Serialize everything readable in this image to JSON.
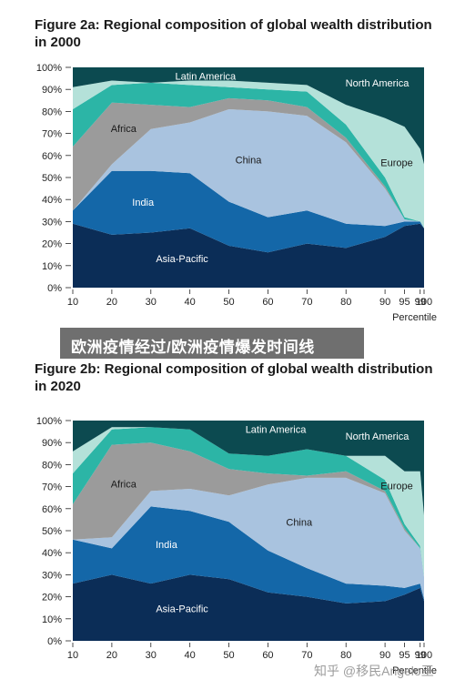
{
  "overlay_banner": "欧洲疫情经过/欧洲疫情爆发时间线",
  "watermark": "知乎 @移民Angelo王",
  "colors": {
    "Asia-Pacific": "#0b2d57",
    "India": "#1467a8",
    "China": "#a9c3df",
    "Africa": "#9b9b9b",
    "Latin America": "#2cb5a6",
    "Europe": "#b4e1d9",
    "North America": "#0c4a50"
  },
  "chart_data": [
    {
      "type": "area",
      "stacked": true,
      "title": "Figure 2a: Regional composition of global wealth distribution in 2000",
      "xlabel": "Percentile",
      "ylabel": "",
      "x": [
        10,
        20,
        30,
        40,
        50,
        60,
        70,
        80,
        90,
        95,
        99,
        100
      ],
      "x_tick_labels": [
        "10",
        "20",
        "30",
        "40",
        "50",
        "60",
        "70",
        "80",
        "90",
        "95",
        "99",
        "100"
      ],
      "y_tick_labels": [
        "0%",
        "10%",
        "20%",
        "30%",
        "40%",
        "50%",
        "60%",
        "70%",
        "80%",
        "90%",
        "100%"
      ],
      "ylim": [
        0,
        100
      ],
      "series": [
        {
          "name": "Asia-Pacific",
          "values": [
            29,
            24,
            25,
            27,
            19,
            16,
            20,
            18,
            23,
            28,
            29,
            27
          ]
        },
        {
          "name": "India",
          "values": [
            6,
            29,
            28,
            25,
            20,
            16,
            15,
            11,
            5,
            2,
            1,
            0
          ]
        },
        {
          "name": "China",
          "values": [
            0,
            3,
            19,
            23,
            42,
            48,
            43,
            37,
            17,
            1,
            0,
            0
          ]
        },
        {
          "name": "Africa",
          "values": [
            29,
            28,
            11,
            7,
            5,
            5,
            4,
            2,
            1,
            0,
            0,
            0
          ]
        },
        {
          "name": "Latin America",
          "values": [
            17,
            8,
            10,
            10,
            5,
            5,
            7,
            6,
            4,
            1,
            0,
            0
          ]
        },
        {
          "name": "Europe",
          "values": [
            10,
            2,
            0,
            2,
            3,
            3,
            3,
            9,
            27,
            41,
            33,
            29
          ]
        },
        {
          "name": "North America",
          "values": [
            9,
            6,
            7,
            6,
            6,
            7,
            8,
            17,
            23,
            27,
            37,
            44
          ]
        }
      ],
      "labels": [
        "Latin America",
        "North America",
        "Africa",
        "China",
        "Europe",
        "India",
        "Asia-Pacific"
      ]
    },
    {
      "type": "area",
      "stacked": true,
      "title": "Figure 2b: Regional composition of global wealth distribution in 2020",
      "xlabel": "Percentile",
      "ylabel": "",
      "x": [
        10,
        20,
        30,
        40,
        50,
        60,
        70,
        80,
        90,
        95,
        99,
        100
      ],
      "x_tick_labels": [
        "10",
        "20",
        "30",
        "40",
        "50",
        "60",
        "70",
        "80",
        "90",
        "95",
        "99",
        "100"
      ],
      "y_tick_labels": [
        "0%",
        "10%",
        "20%",
        "30%",
        "40%",
        "50%",
        "60%",
        "70%",
        "80%",
        "90%",
        "100%"
      ],
      "ylim": [
        0,
        100
      ],
      "series": [
        {
          "name": "Asia-Pacific",
          "values": [
            26,
            30,
            26,
            30,
            28,
            22,
            20,
            17,
            18,
            21,
            24,
            18
          ]
        },
        {
          "name": "India",
          "values": [
            20,
            12,
            35,
            29,
            26,
            19,
            13,
            9,
            7,
            3,
            2,
            1
          ]
        },
        {
          "name": "China",
          "values": [
            0,
            5,
            7,
            10,
            12,
            30,
            41,
            48,
            42,
            26,
            16,
            10
          ]
        },
        {
          "name": "Africa",
          "values": [
            16,
            42,
            22,
            17,
            12,
            5,
            1,
            3,
            1,
            1,
            0,
            0
          ]
        },
        {
          "name": "Latin America",
          "values": [
            14,
            7,
            7,
            10,
            7,
            8,
            12,
            7,
            5,
            2,
            1,
            0
          ]
        },
        {
          "name": "Europe",
          "values": [
            10,
            1,
            0,
            0,
            0,
            0,
            0,
            0,
            11,
            24,
            34,
            28
          ]
        },
        {
          "name": "North America",
          "values": [
            14,
            3,
            3,
            4,
            15,
            16,
            13,
            16,
            16,
            23,
            23,
            43
          ]
        }
      ],
      "labels": [
        "Latin America",
        "North America",
        "Africa",
        "China",
        "Europe",
        "India",
        "Asia-Pacific"
      ]
    }
  ]
}
